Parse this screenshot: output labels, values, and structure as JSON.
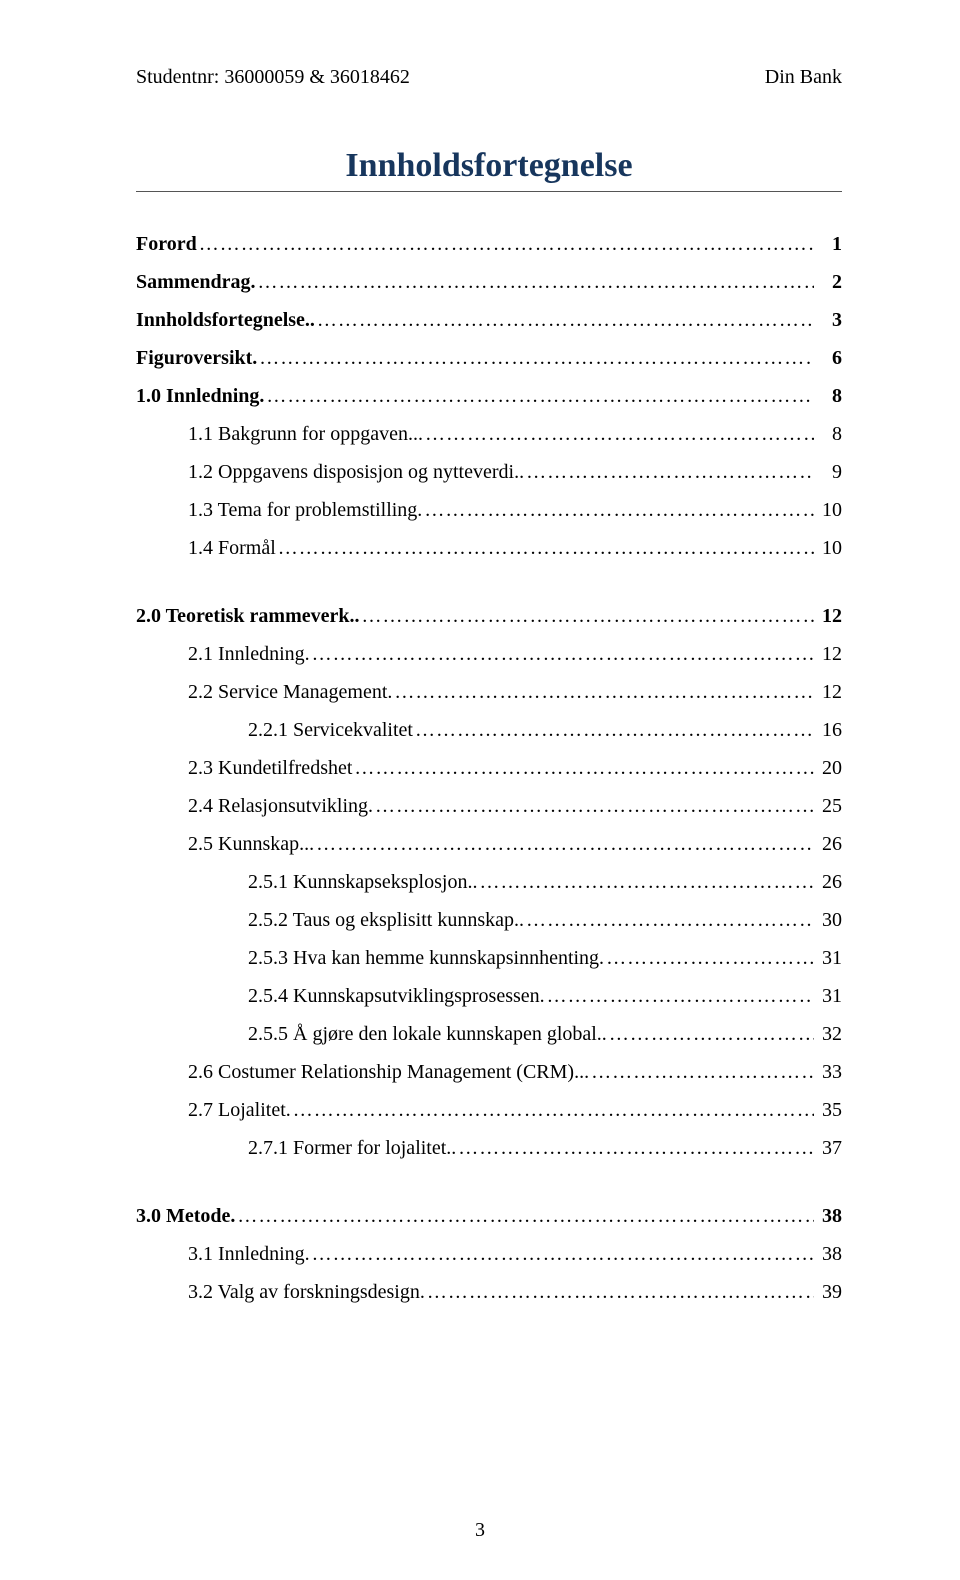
{
  "header": {
    "left": "Studentnr: 36000059 & 36018462",
    "right": "Din Bank"
  },
  "title": {
    "text": "Innholdsfortegnelse",
    "color": "#17365d"
  },
  "toc": [
    {
      "label": "Forord",
      "page": "1",
      "indent": 0,
      "bold": true,
      "gap_after": false
    },
    {
      "label": "Sammendrag.",
      "page": "2",
      "indent": 0,
      "bold": true,
      "gap_after": false
    },
    {
      "label": "Innholdsfortegnelse..",
      "page": "3",
      "indent": 0,
      "bold": true,
      "gap_after": false
    },
    {
      "label": "Figuroversikt.",
      "page": "6",
      "indent": 0,
      "bold": true,
      "gap_after": false
    },
    {
      "label": "1.0 Innledning.",
      "page": "8",
      "indent": 0,
      "bold": true,
      "gap_after": false
    },
    {
      "label": "1.1 Bakgrunn for oppgaven...",
      "page": "8",
      "indent": 1,
      "bold": false,
      "gap_after": false
    },
    {
      "label": "1.2 Oppgavens disposisjon og nytteverdi..",
      "page": "9",
      "indent": 1,
      "bold": false,
      "gap_after": false
    },
    {
      "label": "1.3 Tema for problemstilling.",
      "page": "10",
      "indent": 1,
      "bold": false,
      "gap_after": false
    },
    {
      "label": "1.4 Formål",
      "page": "10",
      "indent": 1,
      "bold": false,
      "gap_after": true
    },
    {
      "label": "2.0 Teoretisk rammeverk..",
      "page": "12",
      "indent": 0,
      "bold": true,
      "gap_after": false
    },
    {
      "label": "2.1 Innledning.",
      "page": "12",
      "indent": 1,
      "bold": false,
      "gap_after": false
    },
    {
      "label": "2.2 Service Management.",
      "page": "12",
      "indent": 1,
      "bold": false,
      "gap_after": false
    },
    {
      "label": "2.2.1 Servicekvalitet",
      "page": "16",
      "indent": 2,
      "bold": false,
      "gap_after": false
    },
    {
      "label": "2.3 Kundetilfredshet",
      "page": "20",
      "indent": 1,
      "bold": false,
      "gap_after": false
    },
    {
      "label": "2.4 Relasjonsutvikling.",
      "page": "25",
      "indent": 1,
      "bold": false,
      "gap_after": false
    },
    {
      "label": "2.5 Kunnskap...",
      "page": "26",
      "indent": 1,
      "bold": false,
      "gap_after": false
    },
    {
      "label": "2.5.1 Kunnskapseksplosjon..",
      "page": "26",
      "indent": 2,
      "bold": false,
      "gap_after": false
    },
    {
      "label": "2.5.2 Taus og eksplisitt kunnskap..",
      "page": "30",
      "indent": 2,
      "bold": false,
      "gap_after": false
    },
    {
      "label": "2.5.3 Hva kan hemme kunnskapsinnhenting.",
      "page": "31",
      "indent": 2,
      "bold": false,
      "gap_after": false
    },
    {
      "label": "2.5.4 Kunnskapsutviklingsprosessen.",
      "page": "31",
      "indent": 2,
      "bold": false,
      "gap_after": false
    },
    {
      "label": "2.5.5 Å gjøre den lokale kunnskapen global..",
      "page": "32",
      "indent": 2,
      "bold": false,
      "gap_after": false
    },
    {
      "label": "2.6 Costumer Relationship Management (CRM)...",
      "page": "33",
      "indent": 1,
      "bold": false,
      "gap_after": false
    },
    {
      "label": "2.7 Lojalitet.",
      "page": "35",
      "indent": 1,
      "bold": false,
      "gap_after": false
    },
    {
      "label": "2.7.1 Former for lojalitet..",
      "page": "37",
      "indent": 2,
      "bold": false,
      "gap_after": true
    },
    {
      "label": "3.0 Metode.",
      "page": "38",
      "indent": 0,
      "bold": true,
      "gap_after": false
    },
    {
      "label": "3.1 Innledning.",
      "page": "38",
      "indent": 1,
      "bold": false,
      "gap_after": false
    },
    {
      "label": "3.2 Valg av forskningsdesign.",
      "page": "39",
      "indent": 1,
      "bold": false,
      "gap_after": false
    }
  ],
  "footer": {
    "page_number": "3"
  }
}
